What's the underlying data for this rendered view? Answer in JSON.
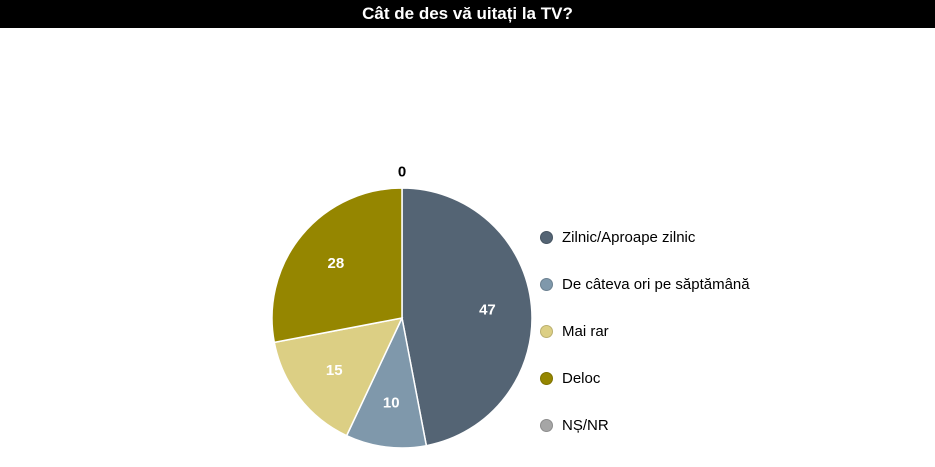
{
  "chart_data": {
    "type": "pie",
    "title": "Cât de des vă uitați la TV?",
    "categories": [
      "Zilnic/Aproape zilnic",
      "De câteva ori pe săptămână",
      "Mai rar",
      "Deloc",
      "NȘ/NR"
    ],
    "values": [
      47,
      10,
      15,
      28,
      0
    ],
    "colors": [
      "#546474",
      "#7f98ab",
      "#dccf84",
      "#958600",
      "#a6a6a6"
    ],
    "legend_position": "right",
    "data_labels": [
      "47",
      "10",
      "15",
      "28",
      "0"
    ]
  }
}
